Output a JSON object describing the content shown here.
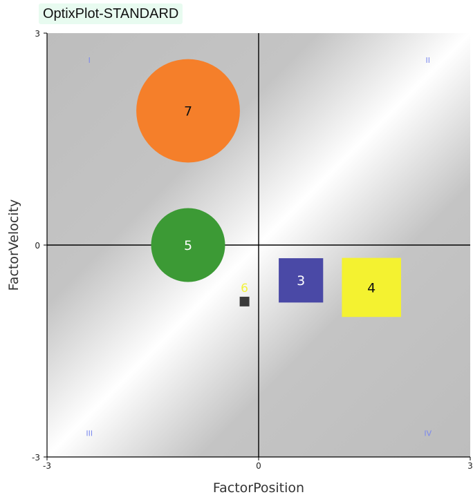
{
  "app": {
    "title": "OptixPlot-STANDARD"
  },
  "colors": {
    "axis": "#000000",
    "quadrant_label": "#7a88ee",
    "plot_bg_dark": "#c0c0c0",
    "plot_bg_light": "#ffffff"
  },
  "chart_data": {
    "type": "scatter",
    "title": "OptixPlot-STANDARD",
    "xlabel": "FactorPosition",
    "ylabel": "FactorVelocity",
    "xlim": [
      -3,
      3
    ],
    "ylim": [
      -3,
      3
    ],
    "x_ticks": [
      "-3",
      "0",
      "3"
    ],
    "y_ticks": [
      "3",
      "0",
      "-3"
    ],
    "grid": false,
    "quadrants": [
      {
        "label": "I",
        "position": "top-left"
      },
      {
        "label": "II",
        "position": "top-right"
      },
      {
        "label": "III",
        "position": "bottom-left"
      },
      {
        "label": "IV",
        "position": "bottom-right"
      }
    ],
    "points": [
      {
        "label": "7",
        "x": -1.0,
        "y": 1.9,
        "size": 7,
        "shape": "circle",
        "color": "#f57f2a",
        "text_color": "#111111"
      },
      {
        "label": "5",
        "x": -1.0,
        "y": 0.0,
        "size": 5,
        "shape": "circle",
        "color": "#3c9a35",
        "text_color": "#ffffff"
      },
      {
        "label": "3",
        "x": 0.6,
        "y": -0.5,
        "size": 3,
        "shape": "square",
        "color": "#4a49a6",
        "text_color": "#ffffff"
      },
      {
        "label": "4",
        "x": 1.6,
        "y": -0.6,
        "size": 4,
        "shape": "square",
        "color": "#f4f230",
        "text_color": "#111111"
      },
      {
        "label": "6",
        "x": -0.2,
        "y": -0.8,
        "size": 6,
        "shape": "square",
        "color": "#3a3a3a",
        "text_color": "#f2f23a"
      }
    ]
  }
}
